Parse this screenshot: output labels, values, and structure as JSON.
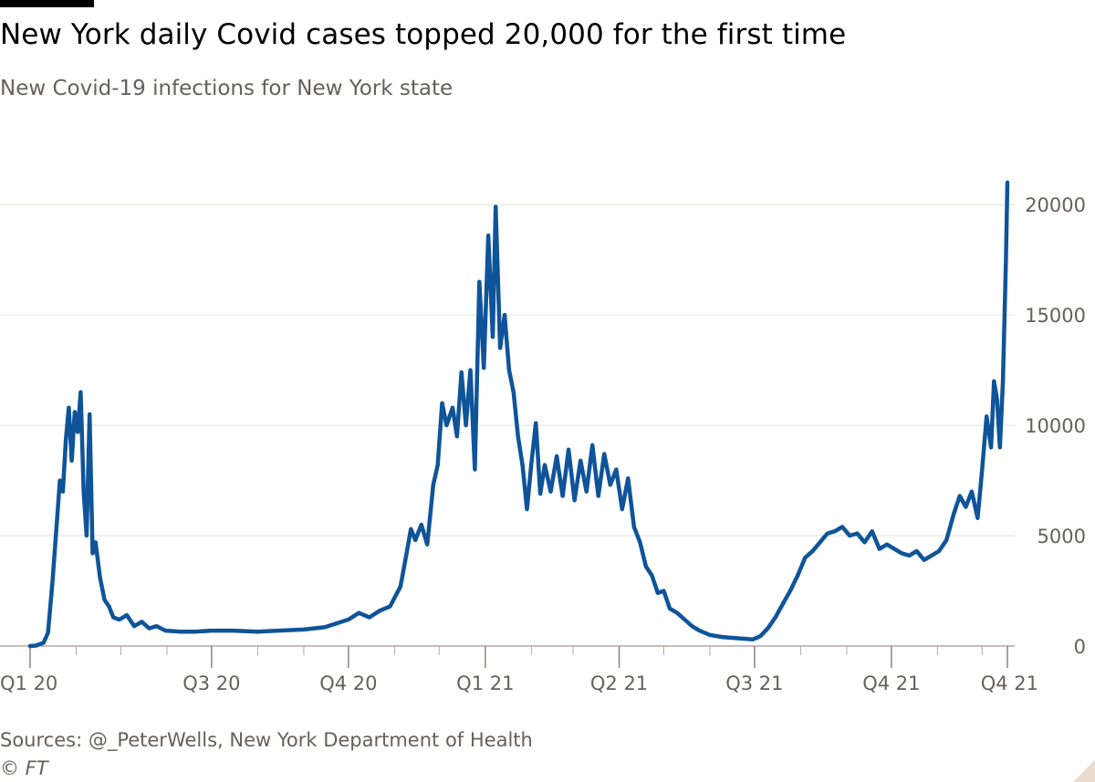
{
  "header": {
    "title": "New York daily Covid cases topped 20,000 for the first time",
    "subtitle": "New Covid-19 infections for New York state"
  },
  "footer": {
    "source": "Sources: @_PeterWells, New York Department of Health",
    "copyright": "© FT"
  },
  "colors": {
    "line": "#0f5499",
    "grid": "#e6e0d9",
    "axis": "#66605c"
  },
  "chart_data": {
    "type": "line",
    "title": "New York daily Covid cases topped 20,000 for the first time",
    "subtitle": "New Covid-19 infections for New York state",
    "xlabel": "",
    "ylabel": "",
    "x_start": "2020-03-01",
    "x_end": "2021-12-18",
    "ylim": [
      0,
      21000
    ],
    "y_ticks": [
      0,
      5000,
      10000,
      15000,
      20000
    ],
    "y_axis_side": "right",
    "grid": true,
    "legend": "none",
    "x_tick_labels": [
      {
        "date": "2020-03-01",
        "label": "Q1 20"
      },
      {
        "date": "2020-07-01",
        "label": "Q3 20"
      },
      {
        "date": "2020-10-01",
        "label": "Q4 20"
      },
      {
        "date": "2021-01-01",
        "label": "Q1 21"
      },
      {
        "date": "2021-04-01",
        "label": "Q2 21"
      },
      {
        "date": "2021-07-01",
        "label": "Q3 21"
      },
      {
        "date": "2021-10-01",
        "label": "Q4 21"
      },
      {
        "date": "2021-12-18",
        "label": "Q4 21"
      }
    ],
    "x_minor_ticks": [
      "2020-04-01",
      "2020-05-01",
      "2020-06-01",
      "2020-08-01",
      "2020-09-01",
      "2020-11-01",
      "2020-12-01",
      "2021-02-01",
      "2021-03-01",
      "2021-05-01",
      "2021-06-01",
      "2021-08-01",
      "2021-09-01",
      "2021-11-01",
      "2021-12-01"
    ],
    "series": [
      {
        "name": "",
        "points": [
          [
            "2020-03-01",
            0
          ],
          [
            "2020-03-05",
            20
          ],
          [
            "2020-03-10",
            150
          ],
          [
            "2020-03-13",
            600
          ],
          [
            "2020-03-16",
            2900
          ],
          [
            "2020-03-19",
            5600
          ],
          [
            "2020-03-21",
            7500
          ],
          [
            "2020-03-23",
            7000
          ],
          [
            "2020-03-25",
            9300
          ],
          [
            "2020-03-27",
            10800
          ],
          [
            "2020-03-29",
            8400
          ],
          [
            "2020-03-31",
            10600
          ],
          [
            "2020-04-02",
            9700
          ],
          [
            "2020-04-04",
            11500
          ],
          [
            "2020-04-06",
            7000
          ],
          [
            "2020-04-08",
            5000
          ],
          [
            "2020-04-10",
            10500
          ],
          [
            "2020-04-12",
            4200
          ],
          [
            "2020-04-14",
            4700
          ],
          [
            "2020-04-17",
            3100
          ],
          [
            "2020-04-20",
            2100
          ],
          [
            "2020-04-23",
            1800
          ],
          [
            "2020-04-26",
            1300
          ],
          [
            "2020-04-30",
            1200
          ],
          [
            "2020-05-05",
            1400
          ],
          [
            "2020-05-10",
            900
          ],
          [
            "2020-05-15",
            1100
          ],
          [
            "2020-05-20",
            800
          ],
          [
            "2020-05-25",
            900
          ],
          [
            "2020-05-31",
            700
          ],
          [
            "2020-06-10",
            650
          ],
          [
            "2020-06-20",
            650
          ],
          [
            "2020-07-01",
            700
          ],
          [
            "2020-07-15",
            700
          ],
          [
            "2020-08-01",
            650
          ],
          [
            "2020-08-15",
            700
          ],
          [
            "2020-09-01",
            750
          ],
          [
            "2020-09-15",
            850
          ],
          [
            "2020-10-01",
            1200
          ],
          [
            "2020-10-08",
            1500
          ],
          [
            "2020-10-15",
            1300
          ],
          [
            "2020-10-22",
            1600
          ],
          [
            "2020-10-29",
            1800
          ],
          [
            "2020-11-05",
            2700
          ],
          [
            "2020-11-08",
            3800
          ],
          [
            "2020-11-12",
            5300
          ],
          [
            "2020-11-15",
            4800
          ],
          [
            "2020-11-19",
            5500
          ],
          [
            "2020-11-23",
            4600
          ],
          [
            "2020-11-27",
            7300
          ],
          [
            "2020-11-30",
            8200
          ],
          [
            "2020-12-03",
            11000
          ],
          [
            "2020-12-06",
            10000
          ],
          [
            "2020-12-10",
            10800
          ],
          [
            "2020-12-13",
            9500
          ],
          [
            "2020-12-16",
            12400
          ],
          [
            "2020-12-19",
            10000
          ],
          [
            "2020-12-22",
            12500
          ],
          [
            "2020-12-25",
            8000
          ],
          [
            "2020-12-28",
            16500
          ],
          [
            "2020-12-31",
            12600
          ],
          [
            "2021-01-03",
            18600
          ],
          [
            "2021-01-06",
            14000
          ],
          [
            "2021-01-08",
            19900
          ],
          [
            "2021-01-11",
            13500
          ],
          [
            "2021-01-14",
            15000
          ],
          [
            "2021-01-17",
            12500
          ],
          [
            "2021-01-20",
            11500
          ],
          [
            "2021-01-23",
            9500
          ],
          [
            "2021-01-26",
            8200
          ],
          [
            "2021-01-29",
            6200
          ],
          [
            "2021-02-01",
            8300
          ],
          [
            "2021-02-04",
            10100
          ],
          [
            "2021-02-07",
            6900
          ],
          [
            "2021-02-10",
            8200
          ],
          [
            "2021-02-14",
            7000
          ],
          [
            "2021-02-18",
            8600
          ],
          [
            "2021-02-22",
            6800
          ],
          [
            "2021-02-26",
            8900
          ],
          [
            "2021-03-02",
            6600
          ],
          [
            "2021-03-06",
            8400
          ],
          [
            "2021-03-10",
            7000
          ],
          [
            "2021-03-14",
            9100
          ],
          [
            "2021-03-18",
            6800
          ],
          [
            "2021-03-22",
            8700
          ],
          [
            "2021-03-26",
            7300
          ],
          [
            "2021-03-30",
            8000
          ],
          [
            "2021-04-03",
            6200
          ],
          [
            "2021-04-07",
            7600
          ],
          [
            "2021-04-11",
            5400
          ],
          [
            "2021-04-15",
            4700
          ],
          [
            "2021-04-19",
            3600
          ],
          [
            "2021-04-23",
            3200
          ],
          [
            "2021-04-27",
            2400
          ],
          [
            "2021-05-01",
            2500
          ],
          [
            "2021-05-05",
            1700
          ],
          [
            "2021-05-10",
            1500
          ],
          [
            "2021-05-15",
            1200
          ],
          [
            "2021-05-20",
            900
          ],
          [
            "2021-05-25",
            700
          ],
          [
            "2021-06-01",
            500
          ],
          [
            "2021-06-10",
            400
          ],
          [
            "2021-06-20",
            350
          ],
          [
            "2021-06-30",
            300
          ],
          [
            "2021-07-05",
            450
          ],
          [
            "2021-07-10",
            800
          ],
          [
            "2021-07-15",
            1300
          ],
          [
            "2021-07-20",
            1900
          ],
          [
            "2021-07-25",
            2500
          ],
          [
            "2021-07-30",
            3200
          ],
          [
            "2021-08-04",
            4000
          ],
          [
            "2021-08-09",
            4300
          ],
          [
            "2021-08-14",
            4700
          ],
          [
            "2021-08-19",
            5100
          ],
          [
            "2021-08-24",
            5200
          ],
          [
            "2021-08-29",
            5400
          ],
          [
            "2021-09-03",
            5000
          ],
          [
            "2021-09-08",
            5100
          ],
          [
            "2021-09-13",
            4700
          ],
          [
            "2021-09-18",
            5200
          ],
          [
            "2021-09-23",
            4400
          ],
          [
            "2021-09-28",
            4600
          ],
          [
            "2021-10-03",
            4400
          ],
          [
            "2021-10-08",
            4200
          ],
          [
            "2021-10-13",
            4100
          ],
          [
            "2021-10-18",
            4300
          ],
          [
            "2021-10-23",
            3900
          ],
          [
            "2021-10-28",
            4100
          ],
          [
            "2021-11-02",
            4300
          ],
          [
            "2021-11-07",
            4800
          ],
          [
            "2021-11-12",
            6000
          ],
          [
            "2021-11-16",
            6800
          ],
          [
            "2021-11-20",
            6300
          ],
          [
            "2021-11-24",
            7000
          ],
          [
            "2021-11-28",
            5800
          ],
          [
            "2021-12-01",
            8000
          ],
          [
            "2021-12-04",
            10400
          ],
          [
            "2021-12-07",
            9000
          ],
          [
            "2021-12-09",
            12000
          ],
          [
            "2021-12-11",
            11200
          ],
          [
            "2021-12-13",
            9000
          ],
          [
            "2021-12-15",
            12000
          ],
          [
            "2021-12-17",
            17500
          ],
          [
            "2021-12-18",
            21000
          ]
        ]
      }
    ]
  }
}
